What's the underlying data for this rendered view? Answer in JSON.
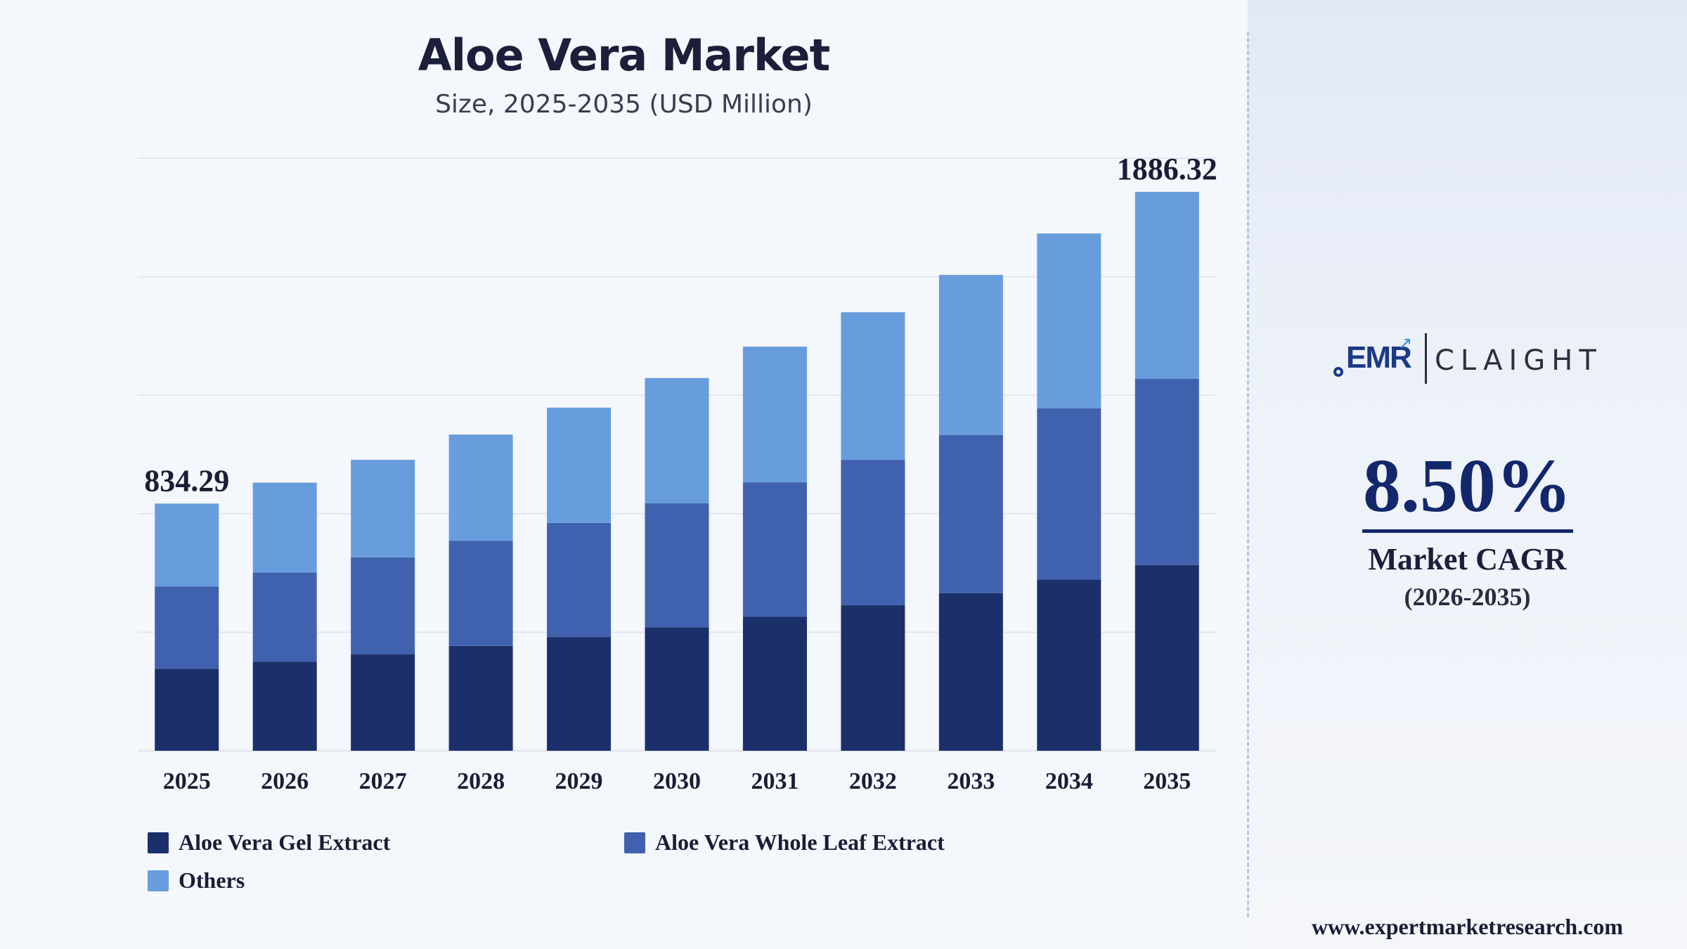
{
  "title": "Aloe Vera Market",
  "subtitle": "Size, 2025-2035 (USD Million)",
  "colors": {
    "gel": "#1b306b",
    "whole_leaf": "#4062ae",
    "others": "#689ddd",
    "grid": "#e3e7ee",
    "axis_text": "#1a1d35"
  },
  "chart_data": {
    "type": "bar",
    "stacked": true,
    "categories": [
      "2025",
      "2026",
      "2027",
      "2028",
      "2029",
      "2030",
      "2031",
      "2032",
      "2033",
      "2034",
      "2035"
    ],
    "series": [
      {
        "name": "Aloe Vera Gel Extract",
        "values": [
          277,
          301,
          326,
          354,
          384,
          417,
          452,
          491,
          532,
          578,
          627
        ]
      },
      {
        "name": "Aloe Vera Whole Leaf Extract",
        "values": [
          277,
          301,
          327,
          355,
          385,
          418,
          454,
          491,
          534,
          578,
          628
        ]
      },
      {
        "name": "Others",
        "values": [
          280.29,
          303,
          329,
          358,
          389,
          423,
          458,
          498,
          540,
          590,
          631.32
        ]
      }
    ],
    "data_labels": [
      {
        "category": "2025",
        "text": "834.29"
      },
      {
        "category": "2035",
        "text": "1886.32"
      }
    ],
    "ylim": [
      0,
      2000
    ],
    "y_axis_visible": false,
    "grid": true,
    "legend_position": "bottom-left"
  },
  "legend": {
    "items": [
      {
        "label": "Aloe Vera Gel Extract"
      },
      {
        "label": "Aloe Vera Whole Leaf Extract"
      },
      {
        "label": "Others"
      }
    ]
  },
  "brand": {
    "logo_left": "EMR",
    "logo_right": "CLAIGHT"
  },
  "cagr": {
    "value": "8.50%",
    "label": "Market CAGR",
    "period": "(2026-2035)"
  },
  "website": "www.expertmarketresearch.com"
}
